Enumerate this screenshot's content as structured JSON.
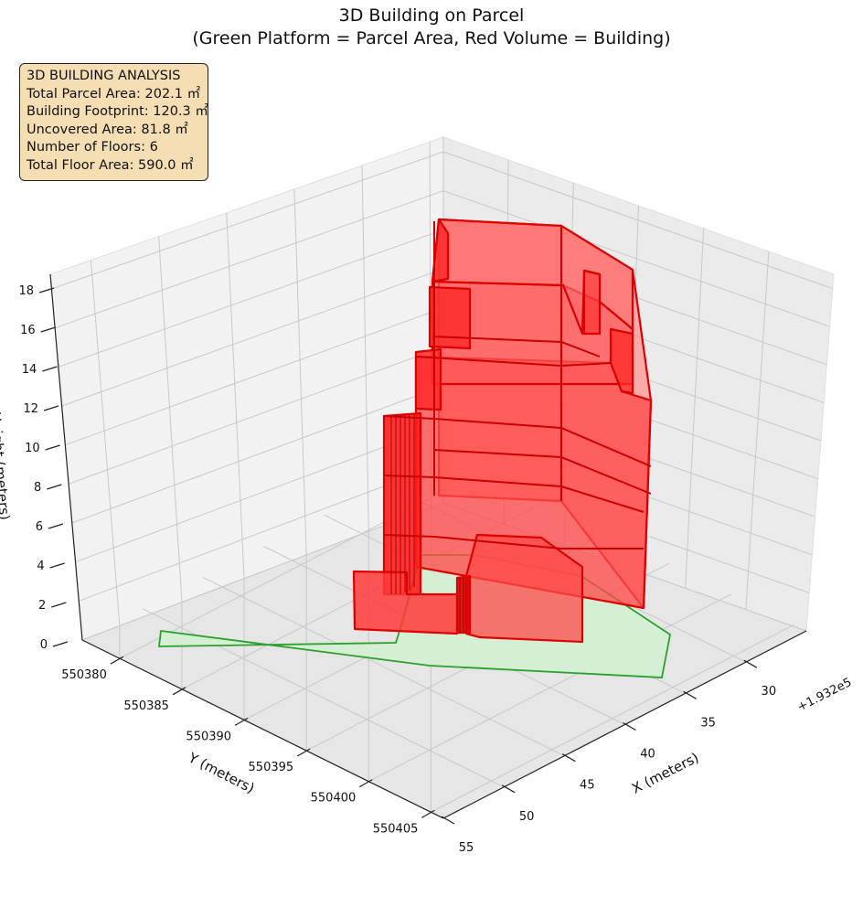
{
  "chart_data": {
    "type": "3d-polygons",
    "title": "3D Building on Parcel",
    "subtitle": "(Green Platform = Parcel Area, Red Volume = Building)",
    "xlabel": "X (meters)",
    "ylabel": "Y (meters)",
    "zlabel": "Height (meters)",
    "x_offset_label": "+1.932e5",
    "x_ticks": [
      "30",
      "35",
      "40",
      "45",
      "50",
      "55"
    ],
    "y_ticks": [
      "550380",
      "550385",
      "550390",
      "550395",
      "550400",
      "550405"
    ],
    "z_ticks": [
      "0",
      "2",
      "4",
      "6",
      "8",
      "10",
      "12",
      "14",
      "16",
      "18"
    ],
    "xlim": [
      193226,
      193256
    ],
    "ylim": [
      550377,
      550406
    ],
    "zlim": [
      0,
      18
    ],
    "series": [
      {
        "name": "Parcel Area",
        "color": "#2ca02c",
        "fill": "#d4f0d4"
      },
      {
        "name": "Building",
        "color": "#dd0000",
        "fill": "#ff3a3a"
      }
    ],
    "info_box": {
      "heading": "3D BUILDING ANALYSIS",
      "lines": [
        "Total Parcel Area: 202.1 ㎡",
        "Building Footprint: 120.3 ㎡",
        "Uncovered Area: 81.8 ㎡",
        "Number of Floors: 6",
        "Total Floor Area: 590.0 ㎡"
      ]
    }
  }
}
